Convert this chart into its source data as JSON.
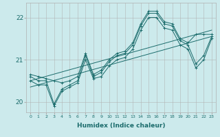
{
  "xlabel": "Humidex (Indice chaleur)",
  "xlim": [
    -0.5,
    23.5
  ],
  "ylim": [
    19.75,
    22.35
  ],
  "yticks": [
    20,
    21,
    22
  ],
  "xticks": [
    0,
    1,
    2,
    3,
    4,
    5,
    6,
    7,
    8,
    9,
    10,
    11,
    12,
    13,
    14,
    15,
    16,
    17,
    18,
    19,
    20,
    21,
    22,
    23
  ],
  "bg_color": "#cceaec",
  "line_color": "#1a6b6b",
  "grid_color": "#b0b0b0",
  "line_upper": [
    20.65,
    20.6,
    20.55,
    20.5,
    20.45,
    20.5,
    20.6,
    21.15,
    20.65,
    20.75,
    21.0,
    21.15,
    21.2,
    21.4,
    21.85,
    22.15,
    22.15,
    21.9,
    21.85,
    21.5,
    21.4,
    21.6,
    21.6,
    21.6
  ],
  "line_mid": [
    20.6,
    20.5,
    20.5,
    19.95,
    20.3,
    20.4,
    20.5,
    21.1,
    20.6,
    20.7,
    20.95,
    21.1,
    21.15,
    21.35,
    21.8,
    22.1,
    22.1,
    21.85,
    21.8,
    21.45,
    21.35,
    20.9,
    21.1,
    21.55
  ],
  "line_lower": [
    20.5,
    20.4,
    20.4,
    19.9,
    20.25,
    20.35,
    20.45,
    21.0,
    20.55,
    20.6,
    20.85,
    21.0,
    21.05,
    21.25,
    21.7,
    22.0,
    22.0,
    21.75,
    21.7,
    21.35,
    21.25,
    20.8,
    21.0,
    21.5
  ],
  "trend1_x": [
    0,
    23
  ],
  "trend1_y": [
    20.5,
    21.7
  ],
  "trend2_x": [
    0,
    23
  ],
  "trend2_y": [
    20.35,
    21.55
  ]
}
